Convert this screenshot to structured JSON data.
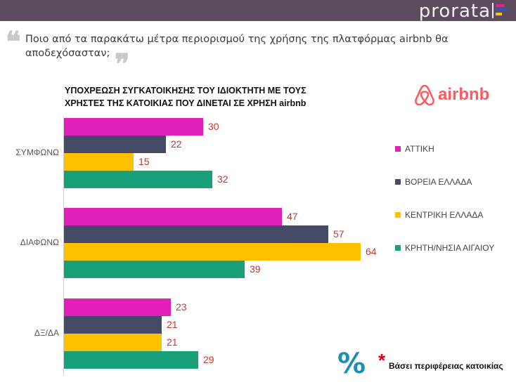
{
  "header": {
    "brand": "prorata",
    "brand_colors": [
      "#e91e8c",
      "#3f51b5",
      "#ffc107",
      "#26a69a"
    ]
  },
  "question": {
    "text": "Ποιο από τα παρακάτω μέτρα περιορισμού της χρήσης της πλατφόρμας airbnb θα αποδεχόσασταν;",
    "quote_open": "❝",
    "quote_close": "❞"
  },
  "logo": {
    "text": "airbnb",
    "color": "#ff5a5f"
  },
  "chart_data": {
    "type": "bar",
    "orientation": "horizontal",
    "title": "ΥΠΟΧΡΕΩΣΗ ΣΥΓΚΑΤΟΙΚΗΣΗΣ ΤΟΥ ΙΔΙΟΚΤΗΤΗ ΜΕ ΤΟΥΣ ΧΡΗΣΤΕΣ ΤΗΣ ΚΑΤΟΙΚΙΑΣ ΠΟΥ ΔΙΝΕΤΑΙ ΣΕ ΧΡΗΣΗ airbnb",
    "categories": [
      "ΣΥΜΦΩΝΩ",
      "ΔΙΑΦΩΝΩ",
      "ΔΞ/ΔΑ"
    ],
    "series": [
      {
        "name": "ΑΤΤΙΚΗ",
        "color": "#e020b8",
        "values": [
          30,
          47,
          23
        ]
      },
      {
        "name": "ΒΟΡΕΙΑ ΕΛΛΑΔΑ",
        "color": "#454a66",
        "values": [
          22,
          57,
          21
        ]
      },
      {
        "name": "ΚΕΝΤΡΙΚΗ ΕΛΛΑΔΑ",
        "color": "#ffc000",
        "values": [
          15,
          64,
          21
        ]
      },
      {
        "name": "ΚΡΗΤΗ/ΝΗΣΙΑ ΑΙΓΑΙΟΥ",
        "color": "#17a07a",
        "values": [
          32,
          39,
          29
        ]
      }
    ],
    "xlim": [
      0,
      100
    ],
    "value_color": "#c0392b",
    "legend": "right",
    "grid": false
  },
  "footer": {
    "percent_symbol": "%",
    "asterisk": "*",
    "note": "Βάσει περιφέρειας κατοικίας"
  }
}
